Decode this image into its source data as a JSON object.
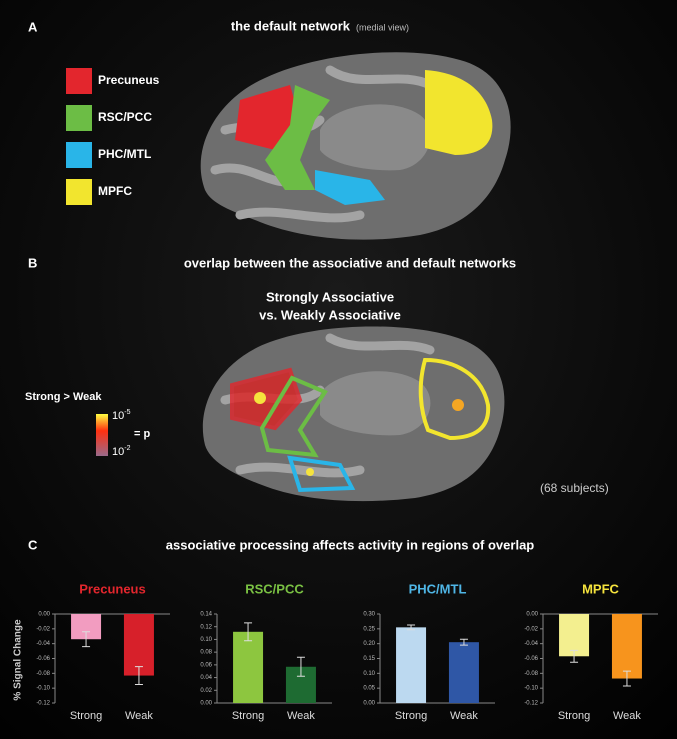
{
  "panel_a": {
    "label": "A",
    "title": "the default network",
    "subtitle": "(medial view)",
    "legend": [
      {
        "label": "Precuneus",
        "color": "#e3262d"
      },
      {
        "label": "RSC/PCC",
        "color": "#6cbd45"
      },
      {
        "label": "PHC/MTL",
        "color": "#29b5e8"
      },
      {
        "label": "MPFC",
        "color": "#f2e52e"
      }
    ]
  },
  "panel_b": {
    "label": "B",
    "title": "overlap between the associative and default networks",
    "subtitle_lines": [
      "Strongly Associative",
      "vs. Weakly Associative"
    ],
    "contrast": "Strong > Weak",
    "scale_top": {
      "base": "10",
      "exponent": "-5"
    },
    "scale_bottom": {
      "base": "10",
      "exponent": "-2"
    },
    "scale_label": "= p",
    "note": "(68 subjects)"
  },
  "panel_c": {
    "label": "C",
    "title": "associative processing affects activity in regions of overlap",
    "y_label": "% Signal Change"
  },
  "chart_data": [
    {
      "type": "bar",
      "title": "Precuneus",
      "title_color": "#e3262d",
      "categories": [
        "Strong",
        "Weak"
      ],
      "values": [
        -0.034,
        -0.083
      ],
      "errors": [
        0.01,
        0.012
      ],
      "colors": [
        "#f29cc0",
        "#d7202a"
      ],
      "ylim": [
        -0.12,
        0
      ],
      "yticks": [
        {
          "value": 0,
          "label": "0.00"
        },
        {
          "value": -0.02,
          "label": "-0.02"
        },
        {
          "value": -0.04,
          "label": "-0.04"
        },
        {
          "value": -0.06,
          "label": "-0.06"
        },
        {
          "value": -0.08,
          "label": "-0.08"
        },
        {
          "value": -0.1,
          "label": "-0.10"
        },
        {
          "value": -0.12,
          "label": "-0.12"
        }
      ]
    },
    {
      "type": "bar",
      "title": "RSC/PCC",
      "title_color": "#7ac143",
      "categories": [
        "Strong",
        "Weak"
      ],
      "values": [
        0.112,
        0.057
      ],
      "errors": [
        0.014,
        0.015
      ],
      "colors": [
        "#8dc63f",
        "#1e6b32"
      ],
      "ylim": [
        0,
        0.14
      ],
      "yticks": [
        {
          "value": 0,
          "label": "0.00"
        },
        {
          "value": 0.02,
          "label": "0.02"
        },
        {
          "value": 0.04,
          "label": "0.04"
        },
        {
          "value": 0.06,
          "label": "0.06"
        },
        {
          "value": 0.08,
          "label": "0.08"
        },
        {
          "value": 0.1,
          "label": "0.10"
        },
        {
          "value": 0.12,
          "label": "0.12"
        },
        {
          "value": 0.14,
          "label": "0.14"
        }
      ]
    },
    {
      "type": "bar",
      "title": "PHC/MTL",
      "title_color": "#4fb6e6",
      "categories": [
        "Strong",
        "Weak"
      ],
      "values": [
        0.255,
        0.205
      ],
      "errors": [
        0.008,
        0.01
      ],
      "colors": [
        "#bcd9f0",
        "#2f57a6"
      ],
      "ylim": [
        0,
        0.3
      ],
      "yticks": [
        {
          "value": 0,
          "label": "0.00"
        },
        {
          "value": 0.05,
          "label": "0.05"
        },
        {
          "value": 0.1,
          "label": "0.10"
        },
        {
          "value": 0.15,
          "label": "0.15"
        },
        {
          "value": 0.2,
          "label": "0.20"
        },
        {
          "value": 0.25,
          "label": "0.25"
        },
        {
          "value": 0.3,
          "label": "0.30"
        }
      ]
    },
    {
      "type": "bar",
      "title": "MPFC",
      "title_color": "#f5e33d",
      "categories": [
        "Strong",
        "Weak"
      ],
      "values": [
        -0.057,
        -0.087
      ],
      "errors": [
        0.008,
        0.01
      ],
      "colors": [
        "#f3ef8f",
        "#f7941d"
      ],
      "ylim": [
        -0.12,
        0
      ],
      "yticks": [
        {
          "value": 0,
          "label": "0.00"
        },
        {
          "value": -0.02,
          "label": "-0.02"
        },
        {
          "value": -0.04,
          "label": "-0.04"
        },
        {
          "value": -0.06,
          "label": "-0.06"
        },
        {
          "value": -0.08,
          "label": "-0.08"
        },
        {
          "value": -0.1,
          "label": "-0.10"
        },
        {
          "value": -0.12,
          "label": "-0.12"
        }
      ]
    }
  ]
}
